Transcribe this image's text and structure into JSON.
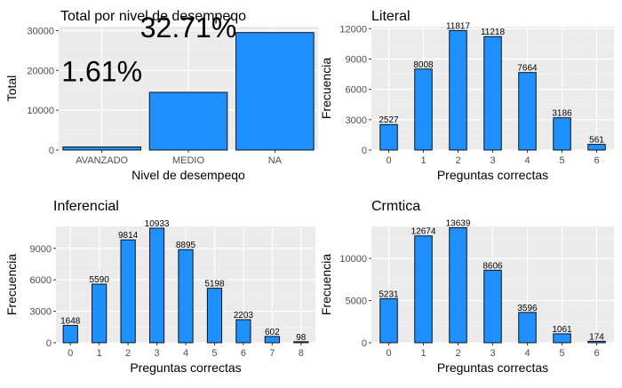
{
  "chart_data": [
    {
      "id": "total",
      "type": "bar",
      "title": "Total por nivel de desempeqo",
      "xlabel": "Nivel de desempeqo",
      "ylabel": "Total",
      "categories": [
        "AVANZADO",
        "MEDIO",
        "NA"
      ],
      "values": [
        780,
        14500,
        29500
      ],
      "ylim": [
        0,
        31000
      ],
      "yticks": [
        0,
        10000,
        20000,
        30000
      ],
      "annotations": [
        {
          "text": "1.61%",
          "x": "AVANZADO",
          "y": 20000
        },
        {
          "text": "32.71%",
          "x": "MEDIO",
          "y": 31000
        }
      ],
      "bar_color": "#1E90FF",
      "grid": true
    },
    {
      "id": "literal",
      "type": "bar",
      "title": "Literal",
      "xlabel": "Preguntas correctas",
      "ylabel": "Frecuencia",
      "categories": [
        "0",
        "1",
        "2",
        "3",
        "4",
        "5",
        "6"
      ],
      "values": [
        2527,
        8008,
        11817,
        11218,
        7664,
        3186,
        561
      ],
      "data_labels": [
        "2527",
        "8008",
        "11817",
        "11218",
        "7664",
        "3186",
        "561"
      ],
      "ylim": [
        0,
        12200
      ],
      "yticks": [
        0,
        3000,
        6000,
        9000,
        12000
      ],
      "bar_color": "#1E90FF",
      "grid": true
    },
    {
      "id": "inferencial",
      "type": "bar",
      "title": "Inferencial",
      "xlabel": "Preguntas correctas",
      "ylabel": "Frecuencia",
      "categories": [
        "0",
        "1",
        "2",
        "3",
        "4",
        "5",
        "6",
        "7",
        "8"
      ],
      "values": [
        1648,
        5590,
        9814,
        10933,
        8895,
        5198,
        2203,
        602,
        98
      ],
      "data_labels": [
        "1648",
        "5590",
        "9814",
        "10933",
        "8895",
        "5198",
        "2203",
        "602",
        "98"
      ],
      "ylim": [
        0,
        11100
      ],
      "yticks": [
        0,
        3000,
        6000,
        9000
      ],
      "bar_color": "#1E90FF",
      "grid": true
    },
    {
      "id": "critica",
      "type": "bar",
      "title": "Crmtica",
      "xlabel": "Preguntas correctas",
      "ylabel": "Frecuencia",
      "categories": [
        "0",
        "1",
        "2",
        "3",
        "4",
        "5",
        "6"
      ],
      "values": [
        5231,
        12674,
        13639,
        8606,
        3596,
        1061,
        174
      ],
      "data_labels": [
        "5231",
        "12674",
        "13639",
        "8606",
        "3596",
        "1061",
        "174"
      ],
      "ylim": [
        0,
        13800
      ],
      "yticks": [
        0,
        5000,
        10000
      ],
      "bar_color": "#1E90FF",
      "grid": true
    }
  ]
}
